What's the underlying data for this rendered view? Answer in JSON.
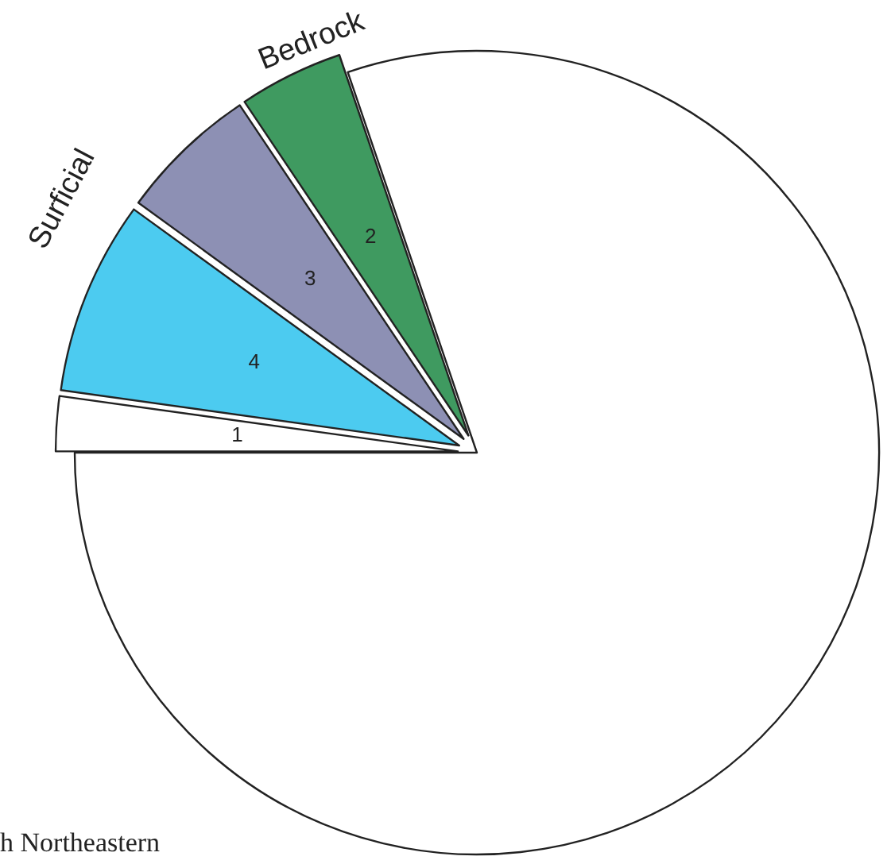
{
  "chart_data": {
    "type": "pie",
    "categories": [
      "1",
      "4",
      "3",
      "2",
      null
    ],
    "values": [
      2.2,
      7.8,
      5.6,
      4.2,
      80.2
    ],
    "colors": [
      "#ffffff",
      "#4ccbf0",
      "#8d90b4",
      "#3f9a60",
      "#ffffff"
    ],
    "annotations": [
      "Surficial",
      "Bedrock",
      "h Northeastern"
    ]
  }
}
